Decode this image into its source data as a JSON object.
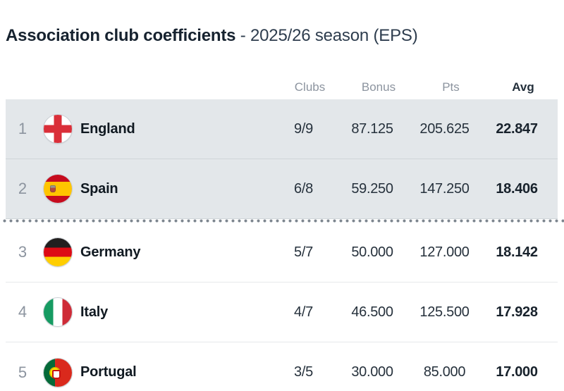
{
  "header": {
    "title_main": "Association club coefficients",
    "title_suffix": " - 2025/26 season (EPS)"
  },
  "table": {
    "columns": {
      "clubs": "Clubs",
      "bonus": "Bonus",
      "pts": "Pts",
      "avg": "Avg"
    },
    "cutoff_after_rank": 2,
    "rows": [
      {
        "rank": "1",
        "country": "England",
        "flag": "england-flag",
        "clubs": "9/9",
        "bonus": "87.125",
        "pts": "205.625",
        "avg": "22.847"
      },
      {
        "rank": "2",
        "country": "Spain",
        "flag": "spain-flag",
        "clubs": "6/8",
        "bonus": "59.250",
        "pts": "147.250",
        "avg": "18.406"
      },
      {
        "rank": "3",
        "country": "Germany",
        "flag": "germany-flag",
        "clubs": "5/7",
        "bonus": "50.000",
        "pts": "127.000",
        "avg": "18.142"
      },
      {
        "rank": "4",
        "country": "Italy",
        "flag": "italy-flag",
        "clubs": "4/7",
        "bonus": "46.500",
        "pts": "125.500",
        "avg": "17.928"
      },
      {
        "rank": "5",
        "country": "Portugal",
        "flag": "portugal-flag",
        "clubs": "3/5",
        "bonus": "30.000",
        "pts": "85.000",
        "avg": "17.000"
      }
    ]
  },
  "colors": {
    "highlight_row_bg": "#e3e7ea",
    "title_text": "#16222f",
    "muted_text": "#8c949f",
    "value_text": "#26313c",
    "dot_divider": "#7d868f"
  }
}
